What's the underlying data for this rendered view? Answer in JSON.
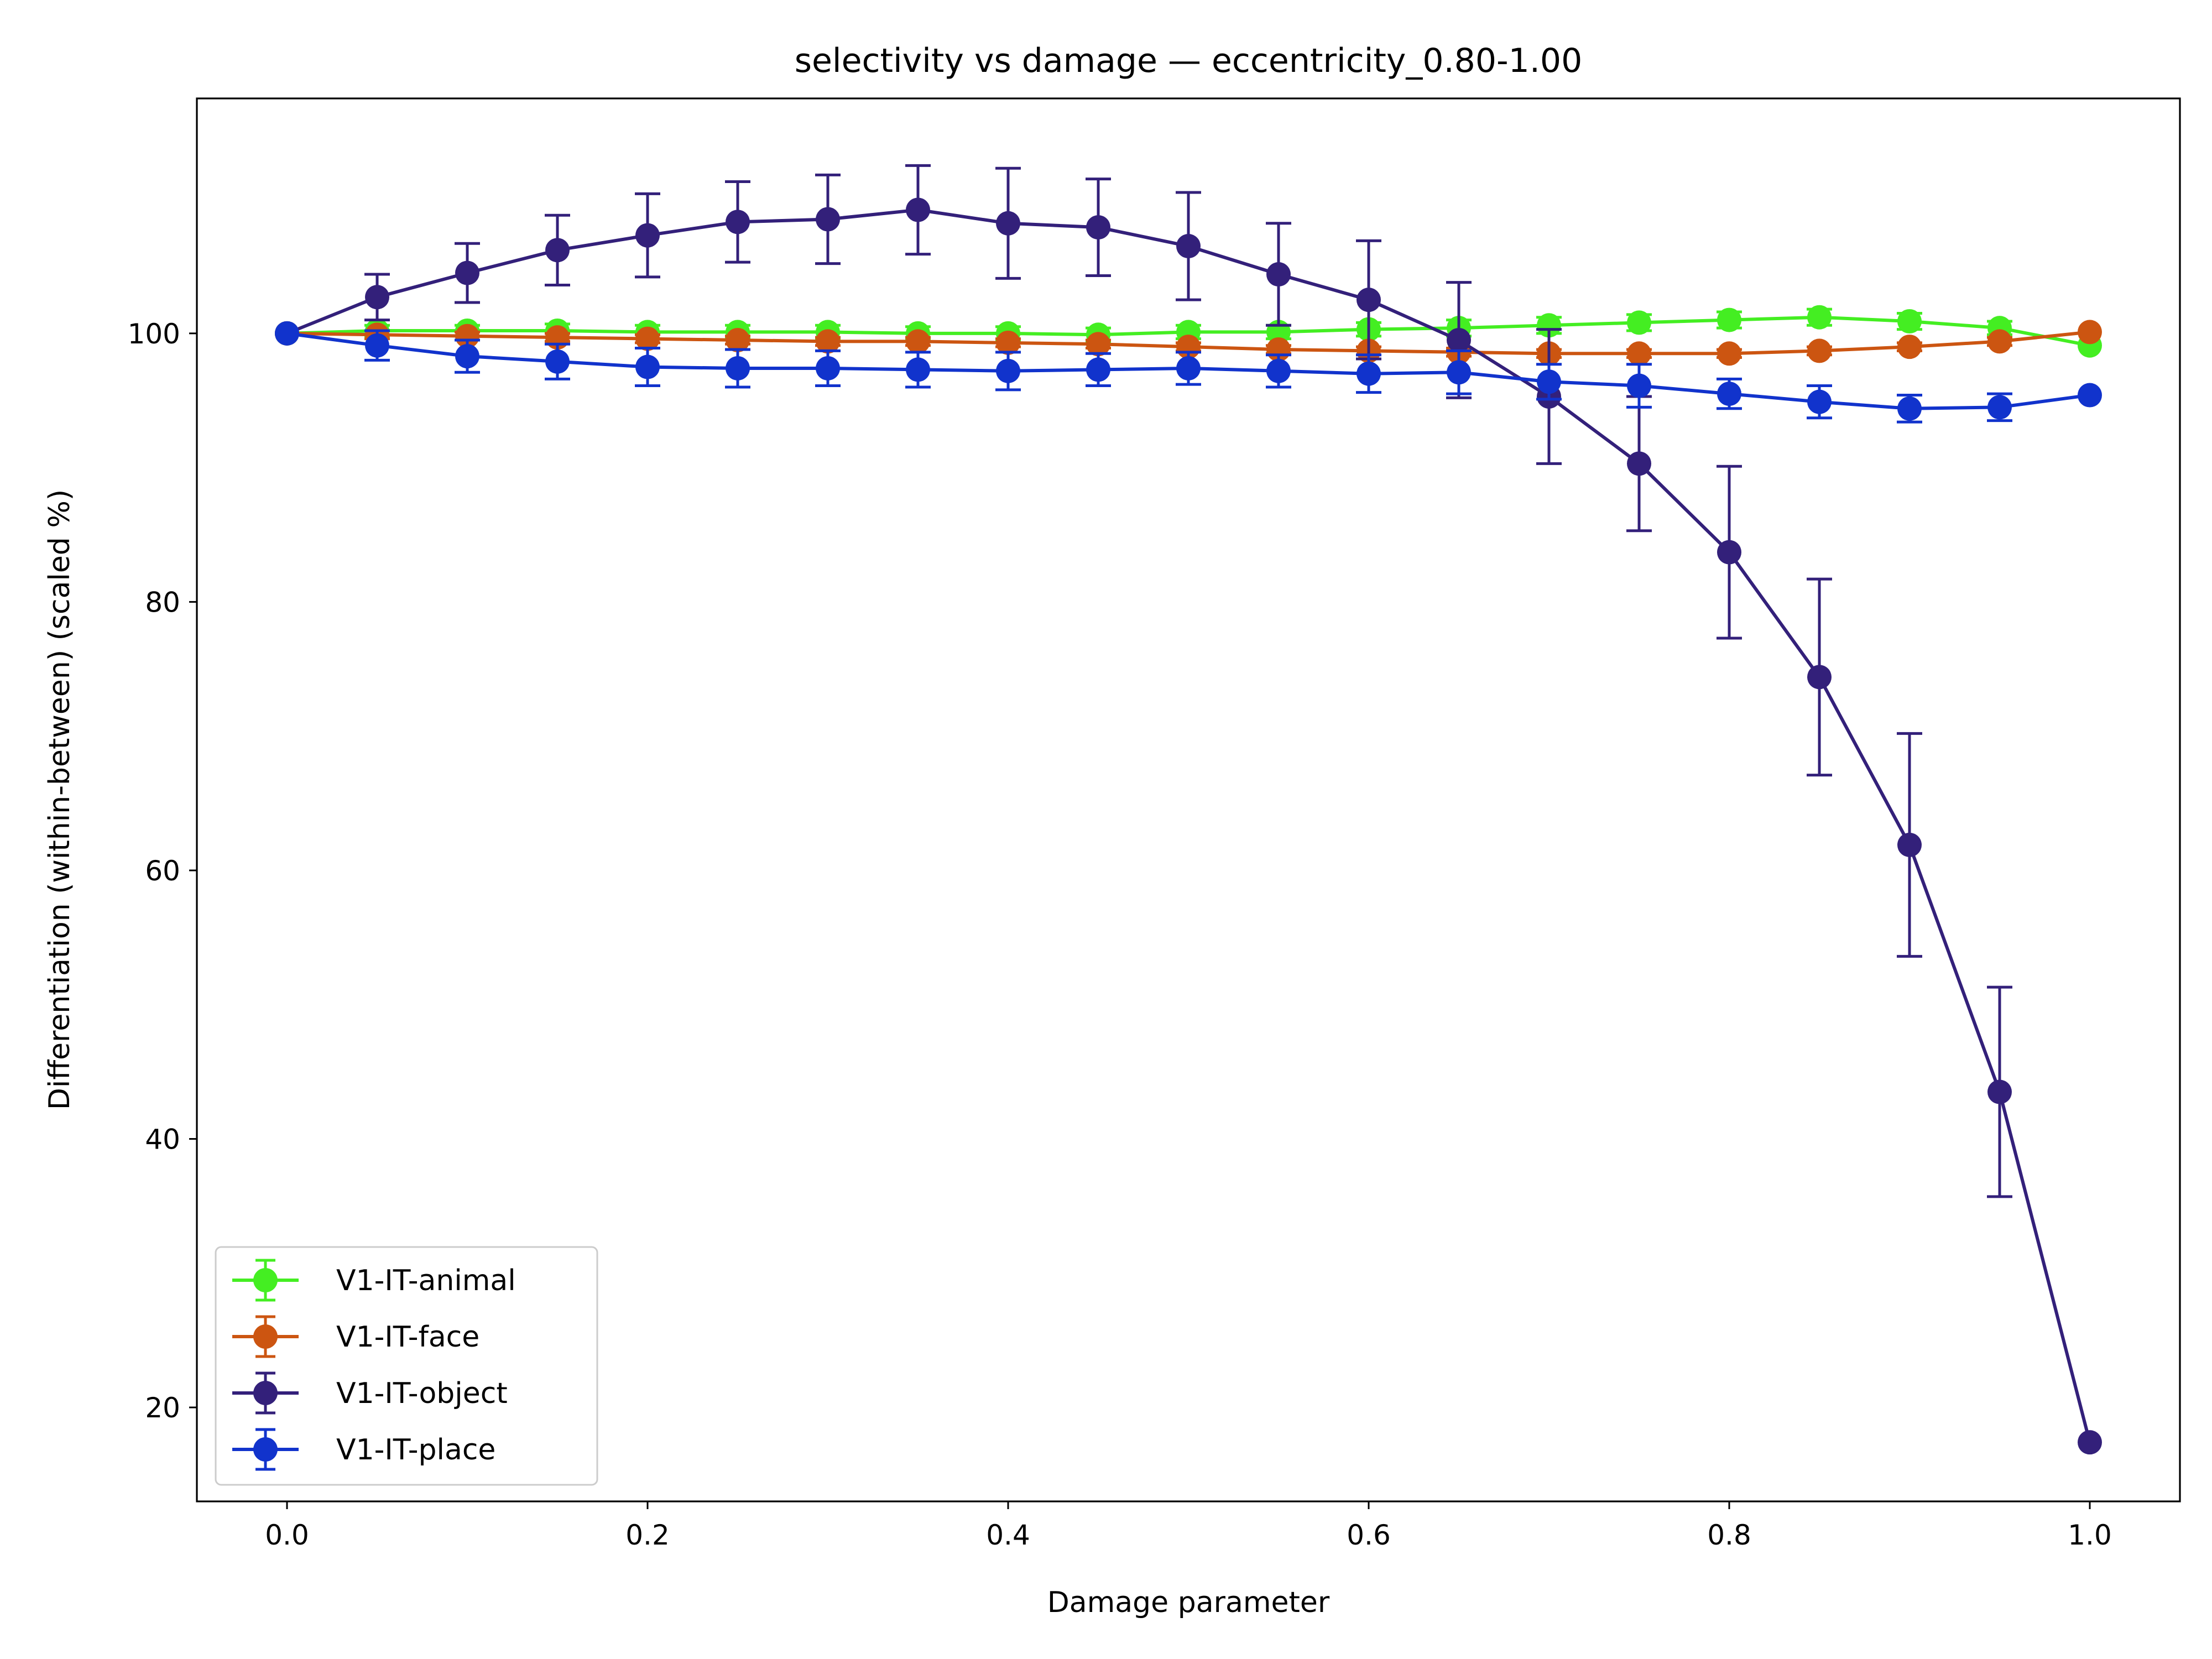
{
  "chart_data": {
    "type": "line",
    "title": "selectivity vs damage — eccentricity_0.80-1.00",
    "xlabel": "Damage parameter",
    "ylabel": "Differentiation (within-between) (scaled %)",
    "xlim": [
      -0.05,
      1.05
    ],
    "ylim": [
      13,
      117.5
    ],
    "xticks": [
      0.0,
      0.2,
      0.4,
      0.6,
      0.8,
      1.0
    ],
    "xtick_labels": [
      "0.0",
      "0.2",
      "0.4",
      "0.6",
      "0.8",
      "1.0"
    ],
    "yticks": [
      20,
      40,
      60,
      80,
      100
    ],
    "ytick_labels": [
      "20",
      "40",
      "60",
      "80",
      "100"
    ],
    "grid": false,
    "legend_position": "lower-left",
    "x": [
      0.0,
      0.05,
      0.1,
      0.15,
      0.2,
      0.25,
      0.3,
      0.35,
      0.4,
      0.45,
      0.5,
      0.55,
      0.6,
      0.65,
      0.7,
      0.75,
      0.8,
      0.85,
      0.9,
      0.95,
      1.0
    ],
    "series": [
      {
        "name": "V1-IT-animal",
        "color": "#44ee22",
        "values": [
          100,
          100.2,
          100.2,
          100.2,
          100.1,
          100.1,
          100.1,
          100.0,
          100.0,
          99.9,
          100.1,
          100.1,
          100.3,
          100.4,
          100.6,
          100.8,
          101.0,
          101.2,
          100.9,
          100.4,
          99.1
        ],
        "errors": [
          0,
          0.4,
          0.4,
          0.5,
          0.5,
          0.5,
          0.5,
          0.5,
          0.5,
          0.5,
          0.5,
          0.5,
          0.5,
          0.6,
          0.6,
          0.6,
          0.6,
          0.6,
          0.6,
          0.5,
          0
        ]
      },
      {
        "name": "V1-IT-face",
        "color": "#cc5511",
        "values": [
          100,
          99.9,
          99.8,
          99.7,
          99.6,
          99.5,
          99.4,
          99.4,
          99.3,
          99.2,
          99.0,
          98.8,
          98.7,
          98.6,
          98.5,
          98.5,
          98.5,
          98.7,
          99.0,
          99.4,
          100.1
        ],
        "errors": [
          0,
          0.3,
          0.3,
          0.3,
          0.3,
          0.3,
          0.3,
          0.3,
          0.3,
          0.3,
          0.3,
          0.3,
          0.3,
          0.3,
          0.3,
          0.3,
          0.3,
          0.3,
          0.3,
          0.3,
          0
        ]
      },
      {
        "name": "V1-IT-object",
        "color": "#33207a",
        "values": [
          100,
          102.7,
          104.5,
          106.2,
          107.3,
          108.3,
          108.5,
          109.2,
          108.2,
          107.9,
          106.5,
          104.4,
          102.5,
          99.5,
          95.3,
          90.3,
          83.7,
          74.4,
          61.9,
          43.5,
          17.4
        ],
        "errors": [
          0,
          1.7,
          2.2,
          2.6,
          3.1,
          3.0,
          3.3,
          3.3,
          4.1,
          3.6,
          4.0,
          3.8,
          4.4,
          4.3,
          5.0,
          5.0,
          6.4,
          7.3,
          8.3,
          7.8,
          0
        ]
      },
      {
        "name": "V1-IT-place",
        "color": "#1133cc",
        "values": [
          100,
          99.1,
          98.3,
          97.9,
          97.5,
          97.4,
          97.4,
          97.3,
          97.2,
          97.3,
          97.4,
          97.2,
          97.0,
          97.1,
          96.4,
          96.1,
          95.5,
          94.9,
          94.4,
          94.5,
          95.4
        ],
        "errors": [
          0,
          1.1,
          1.2,
          1.3,
          1.4,
          1.4,
          1.3,
          1.3,
          1.4,
          1.2,
          1.2,
          1.2,
          1.4,
          1.6,
          1.3,
          1.6,
          1.1,
          1.2,
          1.0,
          1.0,
          0
        ]
      }
    ]
  }
}
